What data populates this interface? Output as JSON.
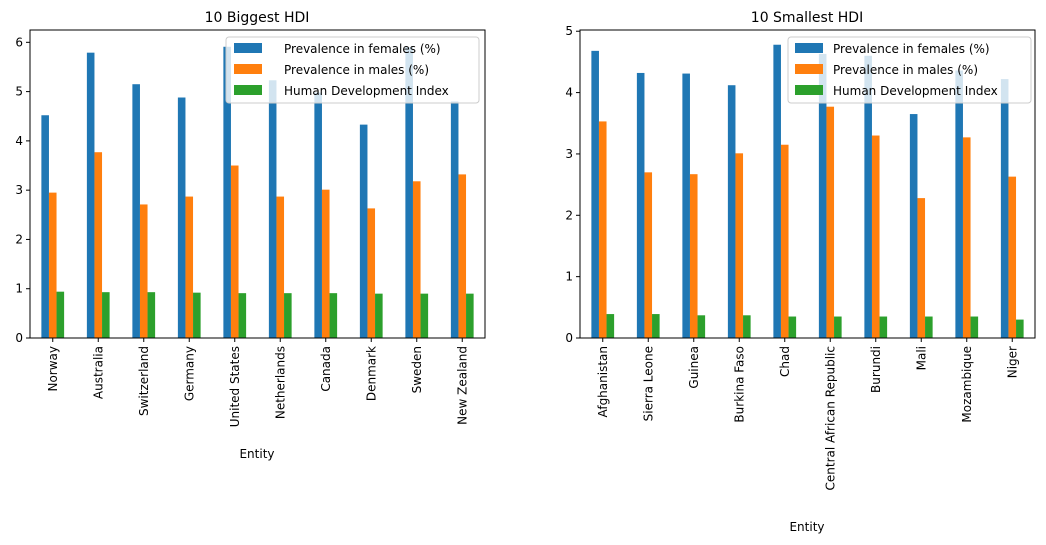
{
  "colors": {
    "females": "#1f77b4",
    "males": "#ff7f0e",
    "hdi": "#2ca02c"
  },
  "chart_data": [
    {
      "type": "bar",
      "title": "10 Biggest HDI",
      "xlabel": "Entity",
      "ylabel": "",
      "ylim": [
        0,
        6.25
      ],
      "yticks": [
        "0",
        "1",
        "2",
        "3",
        "4",
        "5",
        "6"
      ],
      "legend_position": "top-right",
      "categories": [
        "Norway",
        "Australia",
        "Switzerland",
        "Germany",
        "United States",
        "Netherlands",
        "Canada",
        "Denmark",
        "Sweden",
        "New Zealand"
      ],
      "series": [
        {
          "name": "Prevalence in females (%)",
          "values": [
            4.52,
            5.79,
            5.15,
            4.88,
            5.91,
            5.23,
            4.98,
            4.33,
            5.9,
            4.8
          ]
        },
        {
          "name": "Prevalence in males (%)",
          "values": [
            2.95,
            3.77,
            2.71,
            2.87,
            3.5,
            2.87,
            3.01,
            2.63,
            3.18,
            3.32
          ]
        },
        {
          "name": "Human Development Index",
          "values": [
            0.94,
            0.93,
            0.93,
            0.92,
            0.91,
            0.91,
            0.91,
            0.9,
            0.9,
            0.9
          ]
        }
      ]
    },
    {
      "type": "bar",
      "title": "10 Smallest HDI",
      "xlabel": "Entity",
      "ylabel": "",
      "ylim": [
        0,
        5.02
      ],
      "yticks": [
        "0",
        "1",
        "2",
        "3",
        "4",
        "5"
      ],
      "legend_position": "top-right",
      "categories": [
        "Afghanistan",
        "Sierra Leone",
        "Guinea",
        "Burkina Faso",
        "Chad",
        "Central African Republic",
        "Burundi",
        "Mali",
        "Mozambique",
        "Niger"
      ],
      "series": [
        {
          "name": "Prevalence in females (%)",
          "values": [
            4.68,
            4.32,
            4.31,
            4.12,
            4.78,
            4.63,
            4.6,
            3.65,
            4.36,
            4.22
          ]
        },
        {
          "name": "Prevalence in males (%)",
          "values": [
            3.53,
            2.7,
            2.67,
            3.01,
            3.15,
            3.77,
            3.3,
            2.28,
            3.27,
            2.63
          ]
        },
        {
          "name": "Human Development Index",
          "values": [
            0.39,
            0.39,
            0.37,
            0.37,
            0.35,
            0.35,
            0.35,
            0.35,
            0.35,
            0.3
          ]
        }
      ]
    }
  ]
}
